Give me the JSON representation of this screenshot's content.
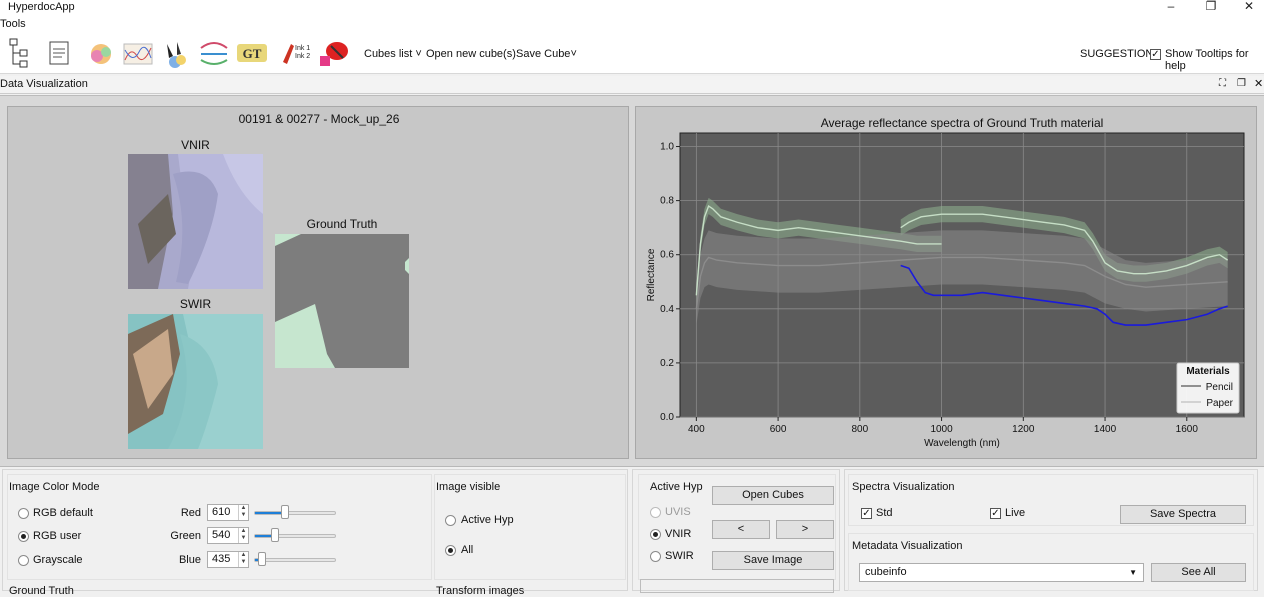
{
  "window": {
    "title": "HyperdocApp"
  },
  "menu": {
    "tools": "Tools"
  },
  "toolbar": {
    "cubes_list": "Cubes list",
    "open_new_cube": "Open new cube(s)",
    "save_cube": "Save Cube",
    "suggestions": "SUGGESTIONS",
    "show_tooltips": "Show Tooltips for help",
    "show_tooltips_checked": true,
    "gt_icon_text": "GT",
    "ink_icon_text1": "Ink 1",
    "ink_icon_text2": "Ink 2"
  },
  "dock": {
    "title": "Data Visualization"
  },
  "images": {
    "cube_title": "00191 & 00277 - Mock_up_26",
    "vnir_label": "VNIR",
    "swir_label": "SWIR",
    "gt_label": "Ground Truth"
  },
  "chart_data": {
    "type": "line",
    "title": "Average reflectance spectra of Ground Truth material",
    "xlabel": "Wavelength (nm)",
    "ylabel": "Reflectance",
    "xlim": [
      360,
      1740
    ],
    "ylim": [
      0,
      1.05
    ],
    "xticks": [
      400,
      600,
      800,
      1000,
      1200,
      1400,
      1600
    ],
    "yticks": [
      0.0,
      0.2,
      0.4,
      0.6,
      0.8,
      1.0
    ],
    "grid": true,
    "legend": {
      "title": "Materials",
      "placement": "bottom-right",
      "entries": [
        "Pencil",
        "Paper"
      ]
    },
    "series": [
      {
        "name": "Paper",
        "color": "#c6dec6",
        "band_color": "#8fb38f",
        "x": [
          400,
          410,
          420,
          430,
          440,
          460,
          500,
          550,
          600,
          650,
          700,
          750,
          800,
          850,
          900,
          940,
          1000
        ],
        "y": [
          0.45,
          0.64,
          0.74,
          0.78,
          0.77,
          0.74,
          0.72,
          0.7,
          0.69,
          0.7,
          0.69,
          0.68,
          0.67,
          0.66,
          0.65,
          0.64,
          0.64
        ],
        "sd": [
          0.03,
          0.03,
          0.03,
          0.03,
          0.03,
          0.03,
          0.03,
          0.03,
          0.03,
          0.03,
          0.03,
          0.03,
          0.03,
          0.03,
          0.03,
          0.03,
          0.03
        ]
      },
      {
        "name": "Paper",
        "color": "#c6dec6",
        "band_color": "#8fb38f",
        "x": [
          900,
          920,
          950,
          1000,
          1100,
          1200,
          1250,
          1300,
          1350,
          1370,
          1400,
          1430,
          1470,
          1500,
          1550,
          1600,
          1650,
          1680,
          1700
        ],
        "y": [
          0.7,
          0.72,
          0.74,
          0.75,
          0.75,
          0.73,
          0.72,
          0.71,
          0.69,
          0.65,
          0.57,
          0.54,
          0.53,
          0.53,
          0.54,
          0.56,
          0.59,
          0.6,
          0.58
        ],
        "sd": [
          0.03,
          0.03,
          0.03,
          0.03,
          0.03,
          0.03,
          0.03,
          0.03,
          0.03,
          0.03,
          0.03,
          0.03,
          0.03,
          0.03,
          0.03,
          0.03,
          0.03,
          0.03,
          0.03
        ]
      },
      {
        "name": "Pencil",
        "color": "#8c8c8c",
        "band_color": "#8a8a8a",
        "x": [
          400,
          410,
          420,
          430,
          450,
          500,
          600,
          700,
          800,
          900,
          1000,
          1100,
          1200,
          1300,
          1350,
          1400,
          1450,
          1500,
          1600,
          1700
        ],
        "y": [
          0.4,
          0.52,
          0.57,
          0.59,
          0.58,
          0.57,
          0.56,
          0.56,
          0.57,
          0.58,
          0.59,
          0.59,
          0.58,
          0.57,
          0.56,
          0.52,
          0.49,
          0.48,
          0.49,
          0.5
        ],
        "sd": [
          0.06,
          0.08,
          0.09,
          0.1,
          0.1,
          0.1,
          0.1,
          0.1,
          0.1,
          0.1,
          0.1,
          0.1,
          0.1,
          0.1,
          0.1,
          0.1,
          0.09,
          0.09,
          0.09,
          0.09
        ]
      },
      {
        "name": "",
        "color": "#1a1adc",
        "x": [
          900,
          920,
          940,
          960,
          980,
          1000,
          1050,
          1100,
          1150,
          1200,
          1250,
          1300,
          1350,
          1380,
          1400,
          1420,
          1450,
          1500,
          1550,
          1600,
          1650,
          1680,
          1700
        ],
        "y": [
          0.56,
          0.55,
          0.5,
          0.46,
          0.45,
          0.45,
          0.45,
          0.46,
          0.45,
          0.44,
          0.43,
          0.42,
          0.41,
          0.4,
          0.38,
          0.35,
          0.34,
          0.34,
          0.35,
          0.36,
          0.38,
          0.4,
          0.41
        ]
      }
    ]
  },
  "color_mode": {
    "title": "Image Color Mode",
    "options": [
      "RGB default",
      "RGB user",
      "Grayscale"
    ],
    "selected": "RGB user",
    "channels": [
      {
        "label": "Red",
        "value": "610",
        "fraction": 0.38
      },
      {
        "label": "Green",
        "value": "540",
        "fraction": 0.25
      },
      {
        "label": "Blue",
        "value": "435",
        "fraction": 0.1
      }
    ]
  },
  "image_visible": {
    "title": "Image visible",
    "options": [
      "Active Hyp",
      "All"
    ],
    "selected": "All"
  },
  "ground_truth_section": {
    "title": "Ground Truth"
  },
  "transform_section": {
    "title": "Transform images"
  },
  "active_hyp": {
    "title": "Active Hyp",
    "options": [
      "UVIS",
      "VNIR",
      "SWIR"
    ],
    "selected": "VNIR",
    "disabled": [
      "UVIS"
    ]
  },
  "cube_buttons": {
    "open_cubes": "Open Cubes",
    "prev": "<",
    "next": ">",
    "save_image": "Save Image"
  },
  "spectra": {
    "title": "Spectra Visualization",
    "std_label": "Std",
    "std_checked": true,
    "live_label": "Live",
    "live_checked": true,
    "save_button": "Save Spectra"
  },
  "metadata": {
    "title": "Metadata Visualization",
    "selected": "cubeinfo",
    "see_all": "See All"
  },
  "colors": {
    "accent": "#1e7fd8",
    "plot_bg": "#5c5c5c",
    "panel_bg": "#c7c7c7"
  }
}
